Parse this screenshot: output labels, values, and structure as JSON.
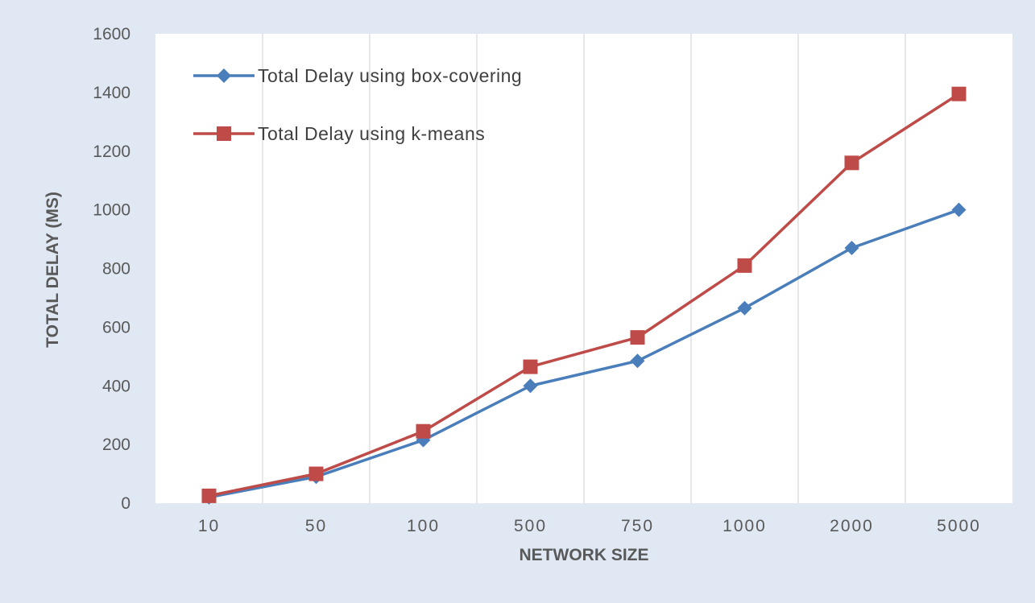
{
  "chart_data": {
    "type": "line",
    "categories": [
      "10",
      "50",
      "100",
      "500",
      "750",
      "1000",
      "2000",
      "5000"
    ],
    "series": [
      {
        "name": "Total Delay using box-covering",
        "values": [
          20,
          90,
          215,
          400,
          485,
          665,
          870,
          1000
        ],
        "color": "#4a7ebb",
        "marker": "diamond"
      },
      {
        "name": "Total Delay using k-means",
        "values": [
          25,
          100,
          245,
          465,
          565,
          810,
          1160,
          1395
        ],
        "color": "#be4b48",
        "marker": "square"
      }
    ],
    "yticks": [
      "0",
      "200",
      "400",
      "600",
      "800",
      "1000",
      "1200",
      "1400",
      "1600"
    ],
    "ylim": [
      0,
      1600
    ],
    "xlabel": "NETWORK SIZE",
    "ylabel": "TOTAL DELAY (MS)",
    "grid": "vertical",
    "legend": "top-left",
    "background_color": "#dfe8f3",
    "plot_background_color": "#ffffff"
  }
}
